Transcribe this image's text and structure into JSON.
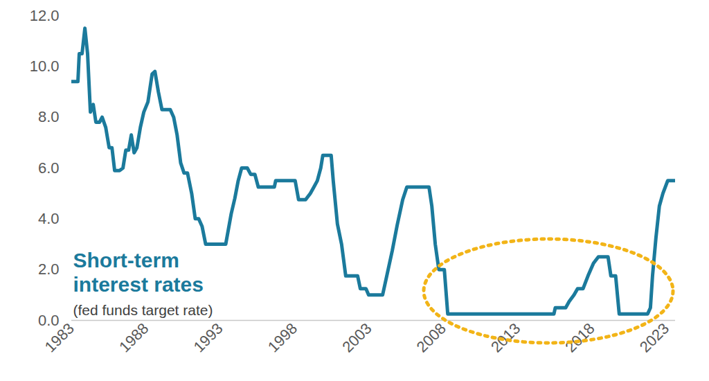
{
  "chart_data": {
    "type": "line",
    "title": "Short-term interest rates",
    "subtitle": "(fed funds target rate)",
    "color": "#1b7a9c",
    "x": [
      1983.0,
      1983.42,
      1983.51,
      1983.7,
      1983.89,
      1984.07,
      1984.26,
      1984.45,
      1984.63,
      1984.87,
      1985.05,
      1985.29,
      1985.52,
      1985.71,
      1985.89,
      1986.22,
      1986.45,
      1986.64,
      1986.83,
      1987.01,
      1987.2,
      1987.39,
      1987.62,
      1987.85,
      1988.13,
      1988.41,
      1988.6,
      1988.83,
      1989.07,
      1989.63,
      1989.86,
      1990.09,
      1990.33,
      1990.56,
      1990.79,
      1991.07,
      1991.31,
      1991.54,
      1991.77,
      1992.01,
      1993.36,
      1993.73,
      1993.97,
      1994.2,
      1994.43,
      1994.81,
      1995.04,
      1995.32,
      1995.55,
      1996.63,
      1996.72,
      1998.03,
      1998.26,
      1998.73,
      1999.05,
      1999.29,
      1999.52,
      1999.75,
      1999.89,
      2000.45,
      2000.59,
      2000.87,
      2001.15,
      2001.43,
      2002.23,
      2002.41,
      2002.79,
      2002.97,
      2003.91,
      2004.19,
      2004.56,
      2004.89,
      2005.26,
      2005.54,
      2007.03,
      2007.22,
      2007.45,
      2007.69,
      2008.06,
      2008.29,
      2015.43,
      2015.52,
      2016.22,
      2016.46,
      2016.78,
      2017.02,
      2017.39,
      2017.72,
      2018.09,
      2018.42,
      2019.07,
      2019.26,
      2019.58,
      2019.82,
      2021.73,
      2021.92,
      2022.06,
      2022.29,
      2022.52,
      2022.76,
      2023.08,
      2023.55
    ],
    "values": [
      9.4,
      9.4,
      10.5,
      10.5,
      11.5,
      10.5,
      8.2,
      8.5,
      7.8,
      7.8,
      8.0,
      7.6,
      6.8,
      6.8,
      5.9,
      5.9,
      6.0,
      6.7,
      6.7,
      7.3,
      6.6,
      6.8,
      7.6,
      8.2,
      8.6,
      9.7,
      9.8,
      9.0,
      8.3,
      8.3,
      8.0,
      7.3,
      6.2,
      5.8,
      5.8,
      5.0,
      4.0,
      4.0,
      3.7,
      3.0,
      3.0,
      4.2,
      4.8,
      5.5,
      6.0,
      6.0,
      5.75,
      5.75,
      5.25,
      5.25,
      5.5,
      5.5,
      4.75,
      4.75,
      5.0,
      5.25,
      5.5,
      6.0,
      6.5,
      6.5,
      5.5,
      3.8,
      3.0,
      1.75,
      1.75,
      1.25,
      1.25,
      1.0,
      1.0,
      1.75,
      2.75,
      3.75,
      4.75,
      5.25,
      5.25,
      4.5,
      3.0,
      2.0,
      2.0,
      0.25,
      0.25,
      0.5,
      0.5,
      0.75,
      1.0,
      1.25,
      1.25,
      1.75,
      2.25,
      2.5,
      2.5,
      1.75,
      1.75,
      0.25,
      0.25,
      0.5,
      1.75,
      3.25,
      4.5,
      5.0,
      5.5,
      5.5
    ],
    "xlim": [
      1983,
      2023.6
    ],
    "ylim": [
      0,
      12
    ],
    "xticks": [
      1983,
      1988,
      1993,
      1998,
      2003,
      2008,
      2013,
      2018,
      2023
    ],
    "yticks": [
      {
        "value": 0,
        "label": "0.0"
      },
      {
        "value": 2,
        "label": "2.0"
      },
      {
        "value": 4,
        "label": "4.0"
      },
      {
        "value": 6,
        "label": "6.0"
      },
      {
        "value": 8,
        "label": "8.0"
      },
      {
        "value": 10,
        "label": "10.0"
      },
      {
        "value": 12,
        "label": "12.0"
      }
    ],
    "grid": false
  }
}
